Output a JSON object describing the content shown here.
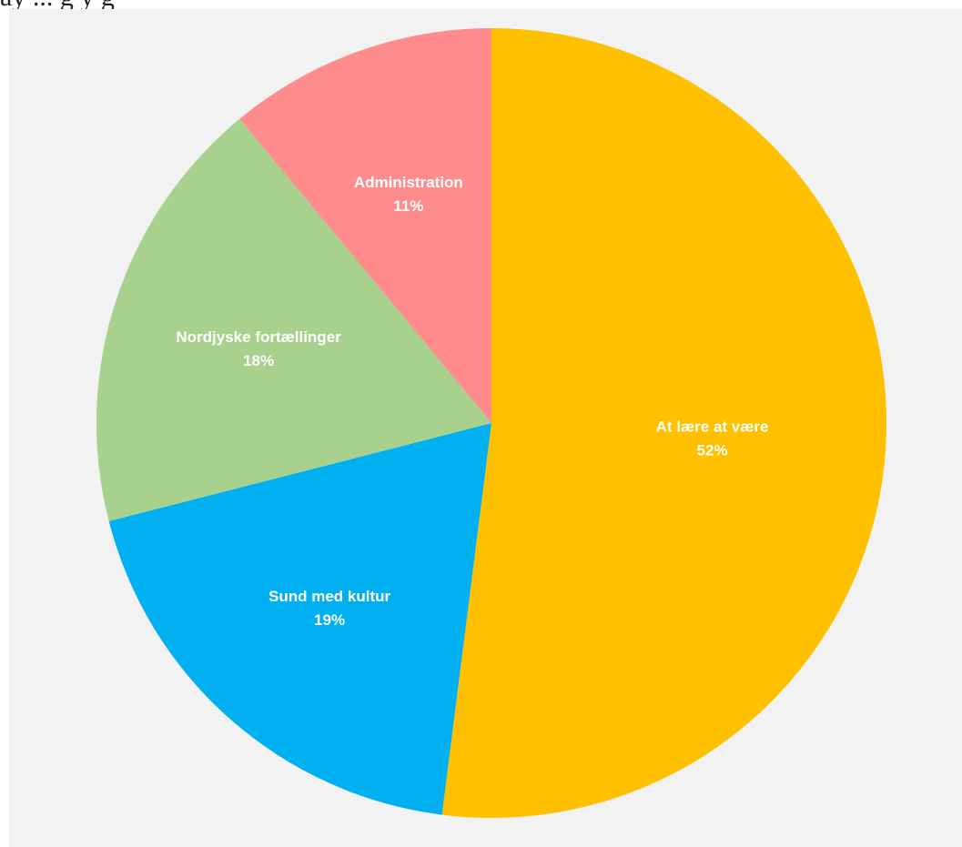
{
  "header_fragment": "ay ... g y g",
  "chart_data": {
    "type": "pie",
    "title": "",
    "start_angle_deg": 0,
    "direction": "clockwise",
    "slices": [
      {
        "label": "At lære at være",
        "value": 52,
        "value_label": "52%",
        "color": "#ffc000"
      },
      {
        "label": "Sund med kultur",
        "value": 19,
        "value_label": "19%",
        "color": "#00b0f0"
      },
      {
        "label": "Nordjyske fortællinger",
        "value": 18,
        "value_label": "18%",
        "color": "#a9d18e"
      },
      {
        "label": "Administration",
        "value": 11,
        "value_label": "11%",
        "color": "#ff8c8c"
      }
    ],
    "legend": "none",
    "data_labels": "inside"
  }
}
